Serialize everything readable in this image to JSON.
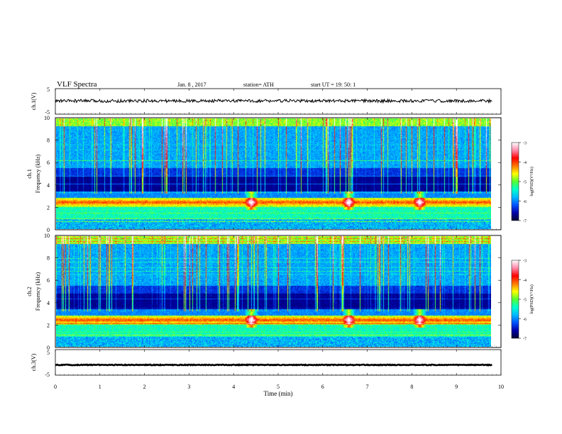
{
  "header": {
    "title": "VLF  Spectra",
    "date": "Jan. 8  , 2017",
    "station": "station= ATH",
    "start": "start  UT  =    19: 50: 1"
  },
  "colors": {
    "colormap": [
      "#000033",
      "#0000aa",
      "#0055ff",
      "#00bbff",
      "#00ffcc",
      "#55ff33",
      "#ffff00",
      "#ff7700",
      "#ff0000",
      "#ff88aa",
      "#ffffff"
    ],
    "trace": "#000000"
  },
  "chart_data": [
    {
      "type": "line",
      "panel": "ch1-waveform",
      "ylabel": "ch.1(V)",
      "ylim": [
        -5,
        5
      ],
      "yticks": [
        "5",
        "-5"
      ],
      "trace_level": 0.2,
      "trace_spread": 0.6
    },
    {
      "type": "heatmap",
      "panel": "ch1-spectrogram",
      "ylabel": "ch.1\nFrequency  (kHz)",
      "ylim": [
        0,
        10
      ],
      "yticks": [
        "0",
        "2",
        "4",
        "6",
        "8",
        "10"
      ],
      "colorbar": {
        "label": "log(PSD)(V²/Hz)",
        "range": [
          -7,
          -3
        ],
        "ticks": [
          "-3",
          "-4",
          "-5",
          "-6",
          "-7"
        ]
      },
      "hiss_band_khz": [
        2.0,
        2.8
      ],
      "hiss_peak_khz": 2.4,
      "bursts_min": [
        4.4,
        6.6,
        8.2
      ]
    },
    {
      "type": "heatmap",
      "panel": "ch2-spectrogram",
      "ylabel": "ch.2\nFrequency  (kHz)",
      "ylim": [
        0,
        10
      ],
      "yticks": [
        "0",
        "2",
        "4",
        "6",
        "8",
        "10"
      ],
      "colorbar": {
        "label": "log(PSD)(V²/Hz)",
        "range": [
          -7,
          -3
        ],
        "ticks": [
          "-3",
          "-4",
          "-5",
          "-6",
          "-7"
        ]
      },
      "hiss_band_khz": [
        2.0,
        2.8
      ],
      "hiss_peak_khz": 2.4,
      "bursts_min": [
        4.4,
        6.6,
        8.2
      ]
    },
    {
      "type": "line",
      "panel": "ch3-waveform",
      "ylabel": "ch.3(V)",
      "ylim": [
        -5,
        5
      ],
      "yticks": [
        "5",
        "-5"
      ],
      "trace_level": -1.0,
      "trace_spread": 0.15
    }
  ],
  "xaxis": {
    "label": "Time  (min)",
    "xlim": [
      0,
      10
    ],
    "ticks": [
      "0",
      "1",
      "2",
      "3",
      "4",
      "5",
      "6",
      "7",
      "8",
      "9",
      "10"
    ],
    "data_end_min": 9.8
  }
}
